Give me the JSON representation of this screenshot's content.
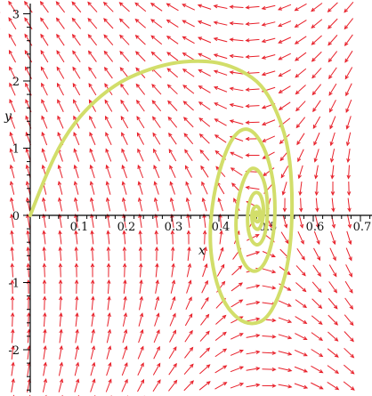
{
  "chart_data": {
    "type": "vector-field-with-trajectory",
    "xlabel": "x",
    "ylabel": "y",
    "xlim": [
      0,
      0.73
    ],
    "ylim": [
      -2.6,
      3.15
    ],
    "x_ticks": [
      0.1,
      0.2,
      0.3,
      0.4,
      0.5,
      0.6,
      0.7
    ],
    "x_tick_labels": [
      "0.1",
      "0.2",
      "0.3",
      "0.4",
      "0.5",
      "0.6",
      "0.7"
    ],
    "y_ticks": [
      -2,
      -1,
      0,
      1,
      2,
      3
    ],
    "y_tick_labels": [
      "-2",
      "-1",
      "0",
      "1",
      "2",
      "3"
    ],
    "field": {
      "equilibrium": [
        0.48,
        0.0
      ],
      "grid_x_step": 0.033,
      "grid_y_step": 0.2,
      "color": "#e8202a"
    },
    "trajectory": {
      "start": [
        0,
        0
      ],
      "spiral_center": [
        0.48,
        0.0
      ],
      "color": "#d2de6a",
      "points": [
        [
          0.0,
          0.0
        ],
        [
          0.03,
          0.55
        ],
        [
          0.07,
          1.15
        ],
        [
          0.12,
          1.6
        ],
        [
          0.18,
          1.95
        ],
        [
          0.24,
          2.15
        ],
        [
          0.3,
          2.27
        ],
        [
          0.35,
          2.3
        ],
        [
          0.4,
          2.28
        ],
        [
          0.45,
          2.15
        ],
        [
          0.49,
          1.95
        ],
        [
          0.52,
          1.6
        ],
        [
          0.545,
          1.1
        ],
        [
          0.555,
          0.5
        ],
        [
          0.555,
          -0.2
        ],
        [
          0.545,
          -0.8
        ],
        [
          0.525,
          -1.25
        ],
        [
          0.5,
          -1.55
        ],
        [
          0.47,
          -1.63
        ],
        [
          0.44,
          -1.55
        ],
        [
          0.41,
          -1.3
        ],
        [
          0.39,
          -0.9
        ],
        [
          0.38,
          -0.4
        ],
        [
          0.385,
          0.15
        ],
        [
          0.4,
          0.65
        ],
        [
          0.42,
          1.05
        ],
        [
          0.44,
          1.25
        ],
        [
          0.46,
          1.3
        ],
        [
          0.48,
          1.2
        ],
        [
          0.5,
          0.95
        ],
        [
          0.515,
          0.55
        ],
        [
          0.52,
          0.1
        ],
        [
          0.515,
          -0.35
        ],
        [
          0.5,
          -0.7
        ],
        [
          0.48,
          -0.85
        ],
        [
          0.46,
          -0.8
        ],
        [
          0.445,
          -0.6
        ],
        [
          0.435,
          -0.25
        ],
        [
          0.438,
          0.15
        ],
        [
          0.45,
          0.5
        ],
        [
          0.465,
          0.7
        ],
        [
          0.48,
          0.7
        ],
        [
          0.495,
          0.55
        ],
        [
          0.503,
          0.25
        ],
        [
          0.503,
          -0.05
        ],
        [
          0.497,
          -0.32
        ],
        [
          0.485,
          -0.45
        ],
        [
          0.472,
          -0.42
        ],
        [
          0.462,
          -0.25
        ],
        [
          0.46,
          0.0
        ],
        [
          0.465,
          0.22
        ],
        [
          0.475,
          0.35
        ],
        [
          0.487,
          0.33
        ],
        [
          0.494,
          0.18
        ],
        [
          0.495,
          0.0
        ],
        [
          0.49,
          -0.16
        ],
        [
          0.482,
          -0.22
        ],
        [
          0.473,
          -0.17
        ],
        [
          0.469,
          -0.03
        ],
        [
          0.472,
          0.1
        ],
        [
          0.48,
          0.15
        ],
        [
          0.487,
          0.09
        ],
        [
          0.488,
          -0.02
        ],
        [
          0.484,
          -0.1
        ],
        [
          0.478,
          -0.09
        ],
        [
          0.475,
          -0.02
        ],
        [
          0.477,
          0.05
        ],
        [
          0.482,
          0.05
        ],
        [
          0.483,
          0.0
        ],
        [
          0.48,
          0.0
        ]
      ]
    }
  }
}
